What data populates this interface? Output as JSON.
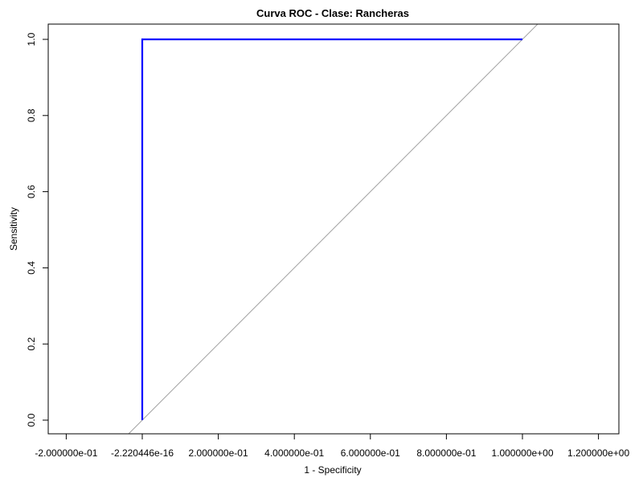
{
  "chart_data": {
    "type": "line",
    "title": "Curva ROC - Clase: Rancheras",
    "xlabel": "1 - Specificity",
    "ylabel": "Sensitivity",
    "xlim": [
      -0.2,
      1.2
    ],
    "ylim": [
      0,
      1
    ],
    "x_ticks": [
      {
        "value": -0.2,
        "label": "-2.000000e-01"
      },
      {
        "value": 0.0,
        "label": "-2.220446e-16"
      },
      {
        "value": 0.2,
        "label": "2.000000e-01"
      },
      {
        "value": 0.4,
        "label": "4.000000e-01"
      },
      {
        "value": 0.6,
        "label": "6.000000e-01"
      },
      {
        "value": 0.8,
        "label": "8.000000e-01"
      },
      {
        "value": 1.0,
        "label": "1.000000e+00"
      },
      {
        "value": 1.2,
        "label": "1.200000e+00"
      }
    ],
    "y_ticks": [
      {
        "value": 0.0,
        "label": "0.0"
      },
      {
        "value": 0.2,
        "label": "0.2"
      },
      {
        "value": 0.4,
        "label": "0.4"
      },
      {
        "value": 0.6,
        "label": "0.6"
      },
      {
        "value": 0.8,
        "label": "0.8"
      },
      {
        "value": 1.0,
        "label": "1.0"
      }
    ],
    "series": [
      {
        "color": "#0000ff",
        "x": [
          0.0,
          0.0,
          1.0
        ],
        "y": [
          0.0,
          1.0,
          1.0
        ]
      }
    ],
    "reference_line": {
      "type": "diagonal",
      "color": "#a0a0a0",
      "x": [
        -0.04,
        1.04
      ],
      "y": [
        -0.04,
        1.04
      ]
    },
    "grid": false,
    "legend": "none"
  }
}
